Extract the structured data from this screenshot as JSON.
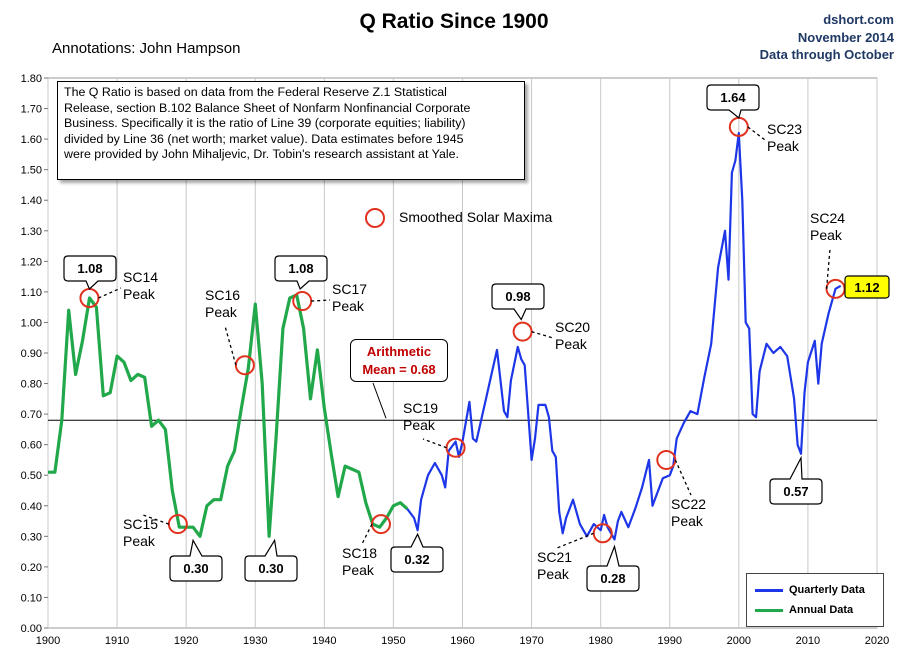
{
  "header": {
    "title": "Q Ratio Since 1900",
    "annotations_by": "Annotations: John Hampson",
    "source_site": "dshort.com",
    "source_date": "November 2014",
    "data_through": "Data through October"
  },
  "info_box": {
    "lines": [
      "The Q Ratio is based on data from the Federal Reserve Z.1 Statistical",
      "Release, section B.102 Balance Sheet of Nonfarm Nonfinancial Corporate",
      "Business. Specifically it is the ratio of Line 39  (corporate equities; liability)",
      "divided by Line 36 (net worth; market value).  Data estimates before 1945",
      "were provided by John Mihaljevic, Dr. Tobin's research assistant at Yale."
    ]
  },
  "mean_box": {
    "line1": "Arithmetic",
    "line2": "Mean = 0.68"
  },
  "solar_legend_label": "Smoothed Solar Maxima",
  "legend": {
    "quarterly": "Quarterly Data",
    "annual": "Annual Data"
  },
  "colors": {
    "annual": "#21a84a",
    "quarterly": "#1d36e8",
    "circle": "#e0321e",
    "current": "#ffff00",
    "grid": "#c8c8c8"
  },
  "chart_data": {
    "type": "line",
    "title": "Q Ratio Since 1900",
    "xlabel": "",
    "ylabel": "",
    "xlim": [
      1900,
      2020
    ],
    "ylim": [
      0.0,
      1.8
    ],
    "x_ticks": [
      1900,
      1910,
      1920,
      1930,
      1940,
      1950,
      1960,
      1970,
      1980,
      1990,
      2000,
      2010,
      2020
    ],
    "y_ticks": [
      0.0,
      0.1,
      0.2,
      0.3,
      0.4,
      0.5,
      0.6,
      0.7,
      0.8,
      0.9,
      1.0,
      1.1,
      1.2,
      1.3,
      1.4,
      1.5,
      1.6,
      1.7,
      1.8
    ],
    "mean": 0.68,
    "series": [
      {
        "name": "Annual Data",
        "x": [
          1900,
          1901,
          1902,
          1903,
          1904,
          1905,
          1906,
          1907,
          1908,
          1909,
          1910,
          1911,
          1912,
          1913,
          1914,
          1915,
          1916,
          1917,
          1918,
          1919,
          1920,
          1921,
          1922,
          1923,
          1924,
          1925,
          1926,
          1927,
          1928,
          1929,
          1930,
          1931,
          1932,
          1933,
          1934,
          1935,
          1936,
          1937,
          1938,
          1939,
          1940,
          1941,
          1942,
          1943,
          1944,
          1945,
          1946,
          1947,
          1948,
          1949,
          1950,
          1951,
          1952
        ],
        "values": [
          0.51,
          0.51,
          0.68,
          1.04,
          0.83,
          0.94,
          1.08,
          1.05,
          0.76,
          0.77,
          0.89,
          0.87,
          0.81,
          0.83,
          0.82,
          0.66,
          0.68,
          0.65,
          0.45,
          0.33,
          0.33,
          0.33,
          0.3,
          0.4,
          0.42,
          0.42,
          0.53,
          0.58,
          0.72,
          0.85,
          1.06,
          0.8,
          0.3,
          0.62,
          0.98,
          1.08,
          1.09,
          0.98,
          0.75,
          0.91,
          0.72,
          0.57,
          0.43,
          0.53,
          0.52,
          0.51,
          0.41,
          0.34,
          0.33,
          0.36,
          0.4,
          0.41,
          0.39
        ]
      },
      {
        "name": "Quarterly Data",
        "x": [
          1952,
          1953,
          1953.5,
          1954,
          1955,
          1956,
          1957,
          1957.5,
          1958,
          1959,
          1959.5,
          1960,
          1961,
          1961.5,
          1962,
          1963,
          1964,
          1965,
          1966,
          1966.5,
          1967,
          1968,
          1968.5,
          1969,
          1970,
          1970.5,
          1971,
          1972,
          1972.5,
          1973,
          1973.5,
          1974,
          1974.5,
          1975,
          1976,
          1977,
          1978,
          1979,
          1980,
          1980.5,
          1981,
          1982,
          1982.5,
          1983,
          1984,
          1985,
          1986,
          1987,
          1987.5,
          1988,
          1989,
          1990,
          1990.5,
          1991,
          1992,
          1993,
          1994,
          1995,
          1996,
          1997,
          1998,
          1998.5,
          1999,
          1999.5,
          2000,
          2000.5,
          2001,
          2001.5,
          2002,
          2002.5,
          2003,
          2004,
          2005,
          2006,
          2007,
          2008,
          2008.5,
          2009,
          2009.5,
          2010,
          2011,
          2011.5,
          2012,
          2013,
          2014,
          2014.75
        ],
        "values": [
          0.39,
          0.36,
          0.32,
          0.42,
          0.5,
          0.54,
          0.5,
          0.46,
          0.58,
          0.61,
          0.56,
          0.61,
          0.74,
          0.62,
          0.61,
          0.71,
          0.81,
          0.91,
          0.71,
          0.69,
          0.81,
          0.92,
          0.88,
          0.86,
          0.55,
          0.62,
          0.73,
          0.73,
          0.69,
          0.58,
          0.56,
          0.38,
          0.31,
          0.36,
          0.42,
          0.34,
          0.3,
          0.34,
          0.32,
          0.37,
          0.33,
          0.29,
          0.35,
          0.38,
          0.33,
          0.39,
          0.46,
          0.55,
          0.4,
          0.43,
          0.49,
          0.5,
          0.53,
          0.62,
          0.67,
          0.71,
          0.7,
          0.82,
          0.93,
          1.18,
          1.3,
          1.14,
          1.49,
          1.53,
          1.62,
          1.4,
          1.0,
          0.98,
          0.7,
          0.69,
          0.84,
          0.93,
          0.9,
          0.92,
          0.89,
          0.75,
          0.6,
          0.57,
          0.77,
          0.87,
          0.94,
          0.8,
          0.93,
          1.03,
          1.11,
          1.12
        ]
      }
    ],
    "annotations": [
      {
        "label": "SC14 Peak",
        "x": 1906,
        "y": 1.08
      },
      {
        "label": "SC15 Peak",
        "x": 1918.8,
        "y": 0.34
      },
      {
        "label": "SC16 Peak",
        "x": 1928.5,
        "y": 0.86
      },
      {
        "label": "SC17 Peak",
        "x": 1936.8,
        "y": 1.07
      },
      {
        "label": "SC18 Peak",
        "x": 1948.2,
        "y": 0.34
      },
      {
        "label": "SC19 Peak",
        "x": 1959,
        "y": 0.59
      },
      {
        "label": "SC20 Peak",
        "x": 1968.7,
        "y": 0.97
      },
      {
        "label": "SC21 Peak",
        "x": 1980.3,
        "y": 0.31
      },
      {
        "label": "SC22 Peak",
        "x": 1989.5,
        "y": 0.55
      },
      {
        "label": "SC23 Peak",
        "x": 2000,
        "y": 1.64
      },
      {
        "label": "SC24 Peak",
        "x": 2014,
        "y": 1.11
      }
    ],
    "value_callouts": [
      {
        "text": "1.08",
        "x": 1906,
        "y": 1.08
      },
      {
        "text": "1.08",
        "x": 1936.5,
        "y": 1.08
      },
      {
        "text": "0.98",
        "x": 1968.5,
        "y": 0.98
      },
      {
        "text": "1.64",
        "x": 2000,
        "y": 1.64
      },
      {
        "text": "0.30",
        "x": 1921,
        "y": 0.3
      },
      {
        "text": "0.30",
        "x": 1932.8,
        "y": 0.3
      },
      {
        "text": "0.32",
        "x": 1953.5,
        "y": 0.32
      },
      {
        "text": "0.28",
        "x": 1982,
        "y": 0.28
      },
      {
        "text": "0.57",
        "x": 2009,
        "y": 0.57
      },
      {
        "text": "1.12",
        "x": 2014.75,
        "y": 1.12
      }
    ]
  }
}
